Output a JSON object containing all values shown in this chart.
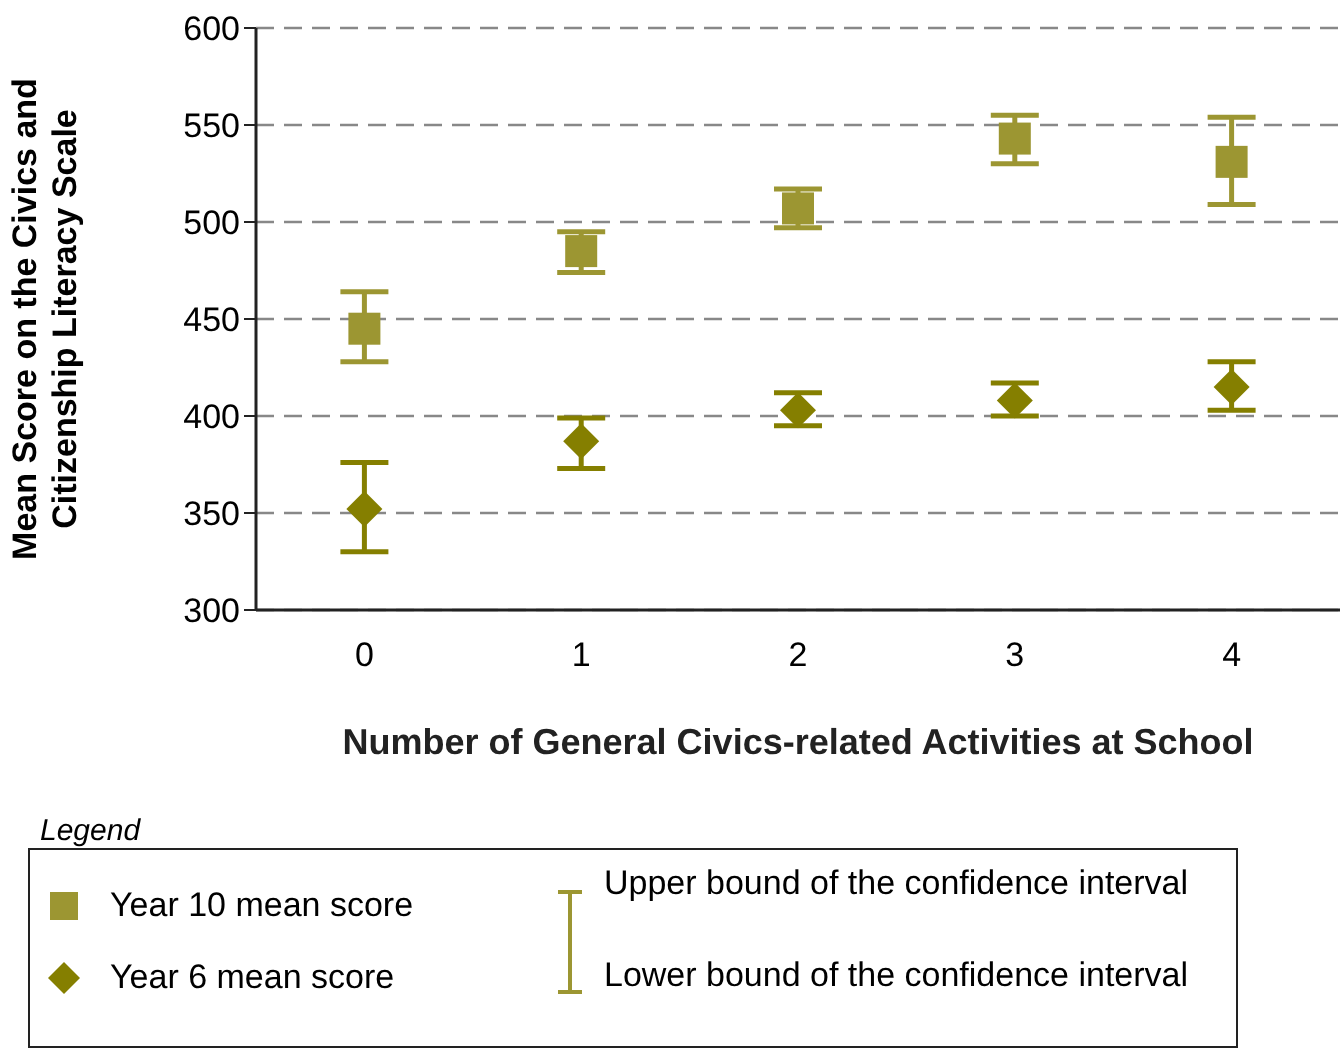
{
  "chart_data": {
    "type": "scatter",
    "xlabel": "Number of General Civics-related Activities at School",
    "ylabel": "Mean Score on the Civics and Citizenship Literacy Scale",
    "categories": [
      "0",
      "1",
      "2",
      "3",
      "4"
    ],
    "series": [
      {
        "name": "Year 10 mean score",
        "color": "#9c9632",
        "marker": "square",
        "values": [
          445,
          485,
          507,
          543,
          531
        ],
        "errors": [
          [
            428,
            464
          ],
          [
            474,
            495
          ],
          [
            497,
            517
          ],
          [
            530,
            555
          ],
          [
            509,
            554
          ]
        ]
      },
      {
        "name": "Year 6 mean score",
        "color": "#857f00",
        "marker": "diamond",
        "values": [
          352,
          387,
          403,
          408,
          415
        ],
        "errors": [
          [
            330,
            376
          ],
          [
            373,
            399
          ],
          [
            395,
            412
          ],
          [
            400,
            417
          ],
          [
            403,
            428
          ]
        ]
      }
    ],
    "ylim": [
      300,
      600
    ],
    "yticks": [
      300,
      350,
      400,
      450,
      500,
      550,
      600
    ],
    "grid": "y",
    "legend": "bottom",
    "legend_title": "Legend",
    "annotations": [
      "Upper bound of the confidence interval",
      "Lower bound of the confidence interval"
    ]
  }
}
